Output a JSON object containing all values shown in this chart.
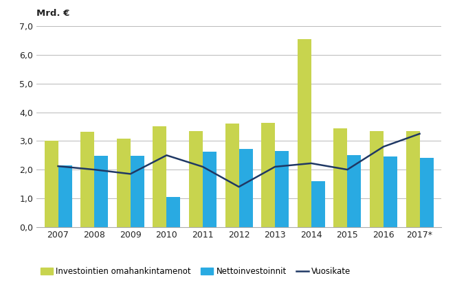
{
  "years": [
    "2007",
    "2008",
    "2009",
    "2010",
    "2011",
    "2012",
    "2013",
    "2014",
    "2015",
    "2016",
    "2017*"
  ],
  "green_bars": [
    3.0,
    3.32,
    3.08,
    3.5,
    3.35,
    3.6,
    3.62,
    6.55,
    3.45,
    3.35,
    3.35
  ],
  "blue_bars": [
    2.15,
    2.48,
    2.48,
    1.05,
    2.62,
    2.72,
    2.65,
    1.6,
    2.5,
    2.45,
    2.4
  ],
  "line_values": [
    2.12,
    2.0,
    1.85,
    2.5,
    2.1,
    1.4,
    2.1,
    2.22,
    2.0,
    2.8,
    3.25
  ],
  "green_color": "#c8d44e",
  "blue_color": "#29aae2",
  "line_color": "#1f3864",
  "ylabel": "Mrd. €",
  "ylim": [
    0,
    7.0
  ],
  "yticks": [
    0.0,
    1.0,
    2.0,
    3.0,
    4.0,
    5.0,
    6.0,
    7.0
  ],
  "legend_labels": [
    "Investointien omahankintamenot",
    "Nettoinvestoinnit",
    "Vuosikate"
  ],
  "bar_width": 0.38,
  "background_color": "#ffffff",
  "grid_color": "#b8b8b8",
  "tick_fontsize": 9,
  "legend_fontsize": 8.5,
  "ylabel_fontsize": 9.5
}
